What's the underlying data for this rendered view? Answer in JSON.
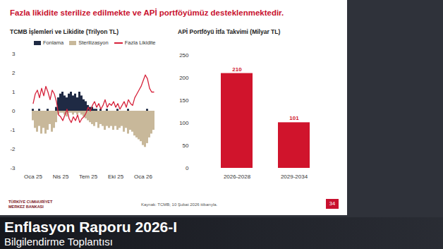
{
  "slide": {
    "title": "Fazla likidite sterilize edilmekte ve APİ portföyümüz desteklenmektedir.",
    "source": "Kaynak: TCMB; 10 Şubat 2026 itibarıyla.",
    "page_number": "34",
    "logo": "TÜRKİYE CUMHURİYET MERKEZ BANKASI"
  },
  "broadcast": {
    "title": "Enflasyon Raporu",
    "edition": "2026-I",
    "subtitle": "Bilgilendirme Toplantısı"
  },
  "chart_data": [
    {
      "type": "bar",
      "title": "TCMB İşlemleri ve Likidite (Trilyon TL)",
      "legend": "top",
      "stacked": false,
      "categories": [
        "Oca 25",
        null,
        null,
        null,
        null,
        null,
        null,
        null,
        null,
        null,
        null,
        null,
        null,
        "Nis 25",
        null,
        null,
        null,
        null,
        null,
        null,
        null,
        null,
        null,
        null,
        null,
        null,
        "Tem 25",
        null,
        null,
        null,
        null,
        null,
        null,
        null,
        null,
        null,
        null,
        null,
        null,
        "Eki 25",
        null,
        null,
        null,
        null,
        null,
        null,
        null,
        null,
        null,
        null,
        null,
        null,
        "Oca 26",
        null,
        null,
        null,
        null,
        null
      ],
      "series": [
        {
          "name": "Fonlama",
          "type": "bar",
          "color": "#1f2a44",
          "values": [
            0.1,
            0.0,
            0.0,
            0.1,
            0.0,
            0.0,
            0.0,
            0.1,
            0.0,
            0.0,
            0.0,
            0.2,
            0.7,
            0.9,
            1.0,
            0.8,
            0.7,
            0.9,
            1.0,
            0.8,
            0.9,
            0.7,
            1.0,
            0.8,
            0.6,
            0.5,
            0.3,
            0.2,
            0.2,
            0.1,
            0.1,
            0.0,
            0.1,
            0.0,
            0.0,
            0.1,
            0.0,
            0.0,
            0.0,
            0.0,
            0.1,
            0.0,
            0.0,
            0.0,
            0.0,
            0.1,
            0.0,
            0.0,
            0.0,
            0.0,
            0.0,
            0.0,
            0.0,
            0.0,
            0.1,
            0.0,
            0.0,
            0.0
          ]
        },
        {
          "name": "Sterilizasyon",
          "type": "bar",
          "color": "#c8b89a",
          "values": [
            -0.5,
            -0.9,
            -1.1,
            -0.8,
            -1.2,
            -0.9,
            -1.2,
            -1.0,
            -0.7,
            -1.1,
            -0.9,
            -0.6,
            -0.2,
            -0.1,
            -0.1,
            -0.2,
            -0.3,
            -0.1,
            -0.1,
            -0.2,
            -0.1,
            -0.2,
            -0.1,
            -0.2,
            -0.3,
            -0.4,
            -0.5,
            -0.6,
            -0.7,
            -0.8,
            -0.6,
            -0.9,
            -0.7,
            -0.8,
            -1.0,
            -0.8,
            -0.9,
            -0.8,
            -1.0,
            -0.8,
            -1.0,
            -0.9,
            -0.8,
            -1.1,
            -0.9,
            -1.2,
            -1.0,
            -1.1,
            -1.3,
            -1.4,
            -1.5,
            -1.6,
            -1.8,
            -1.9,
            -1.7,
            -1.4,
            -1.2,
            -1.0
          ]
        },
        {
          "name": "Fazla Likidite",
          "type": "line",
          "color": "#d6213a",
          "values": [
            0.4,
            0.9,
            1.1,
            0.7,
            1.2,
            0.8,
            1.3,
            1.0,
            0.6,
            1.1,
            0.9,
            0.5,
            -0.2,
            -0.3,
            -0.5,
            -0.2,
            0.1,
            -0.4,
            -0.6,
            -0.3,
            -0.5,
            -0.2,
            -0.6,
            -0.4,
            -0.3,
            -0.1,
            0.2,
            0.0,
            0.3,
            0.5,
            0.2,
            0.4,
            0.1,
            0.3,
            0.6,
            0.2,
            0.4,
            0.3,
            0.5,
            0.2,
            0.4,
            0.1,
            0.3,
            0.5,
            0.2,
            0.6,
            0.4,
            0.3,
            0.7,
            0.9,
            1.1,
            1.3,
            1.6,
            1.9,
            1.7,
            1.2,
            1.0,
            1.0
          ]
        }
      ],
      "ylim": [
        -3,
        3
      ],
      "yticks": [
        -3,
        -2,
        -1,
        0,
        1,
        2,
        3
      ],
      "grid": false
    },
    {
      "type": "bar",
      "title": "APİ Portföyü İtfa Takvimi (Milyar TL)",
      "categories": [
        "2026-2028",
        "2029-2034"
      ],
      "values": [
        210,
        101
      ],
      "color": "#d0142c",
      "ylim": [
        0,
        250
      ],
      "yticks": [
        0,
        50,
        100,
        150,
        200,
        250
      ],
      "data_labels": true,
      "grid": false
    }
  ]
}
